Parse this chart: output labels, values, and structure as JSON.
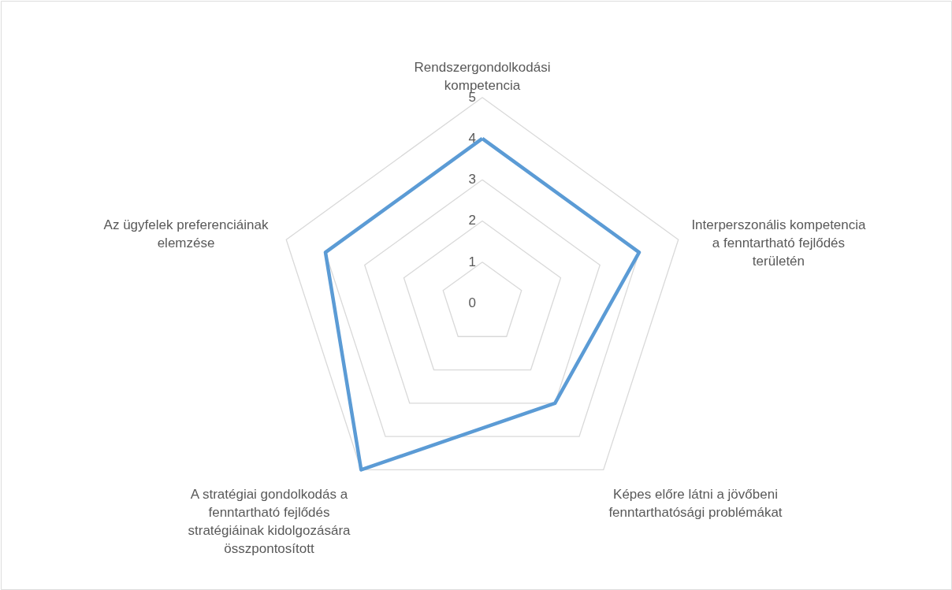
{
  "chart_data": {
    "type": "radar",
    "categories": [
      "Rendszergondolkodási kompetencia",
      "Interperszonális kompetencia a fenntartható fejlődés területén",
      "Képes előre látni a jövőbeni fenntarthatósági problémákat",
      "A stratégiai gondolkodás a fenntartható fejlődés stratégiáinak kidolgozására összpontosított",
      "Az ügyfelek preferenciáinak elemzése"
    ],
    "series": [
      {
        "color": "#5b9bd5",
        "values": [
          4,
          4,
          3,
          5,
          4
        ]
      }
    ],
    "ylim": [
      0,
      5
    ],
    "yticks": [
      0,
      1,
      2,
      3,
      4,
      5
    ],
    "grid": true,
    "marker": "none",
    "line_style": "solid"
  }
}
